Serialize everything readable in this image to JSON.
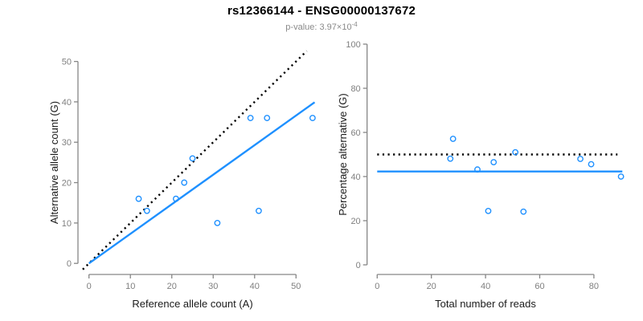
{
  "header": {
    "title": "rs12366144 - ENSG00000137672",
    "subtitle_text": "p-value: 3.97×10",
    "subtitle_exponent": "-4"
  },
  "colors": {
    "point_blue": "#1E90FF",
    "fit_blue": "#1E90FF",
    "dotted_black": "#000000",
    "axis_gray": "#868686",
    "tick_label_gray": "#7f7f7f"
  },
  "chart_data": [
    {
      "type": "scatter",
      "xlabel": "Reference allele count (A)",
      "ylabel": "Alternative allele count (G)",
      "xticks": [
        0,
        10,
        20,
        30,
        40,
        50
      ],
      "yticks": [
        0,
        10,
        20,
        30,
        40,
        50
      ],
      "xlim": [
        0,
        54
      ],
      "ylim": [
        0,
        52
      ],
      "grid": false,
      "legend": false,
      "points": [
        [
          12,
          16
        ],
        [
          14,
          13
        ],
        [
          21,
          16
        ],
        [
          23,
          20
        ],
        [
          25,
          26
        ],
        [
          31,
          10
        ],
        [
          39,
          36
        ],
        [
          41,
          13
        ],
        [
          43,
          36
        ],
        [
          54,
          36
        ]
      ],
      "lines": [
        {
          "name": "identity-dotted-line",
          "style": "dotted",
          "color": "#000000",
          "x1": -1.5,
          "y1": -1.5,
          "x2": 52.6,
          "y2": 52.6
        },
        {
          "name": "fit-line",
          "style": "solid",
          "color": "#1E90FF",
          "x1": 0,
          "y1": 0,
          "x2": 54.5,
          "y2": 39.9
        }
      ]
    },
    {
      "type": "scatter",
      "xlabel": "Total number of reads",
      "ylabel": "Percentage alternative (G)",
      "xticks": [
        0,
        20,
        40,
        60,
        80
      ],
      "yticks": [
        0,
        20,
        40,
        60,
        80,
        100
      ],
      "xlim": [
        0,
        90
      ],
      "ylim": [
        0,
        100
      ],
      "grid": false,
      "legend": false,
      "points": [
        [
          28,
          57.1
        ],
        [
          27,
          48.1
        ],
        [
          37,
          43.2
        ],
        [
          43,
          46.5
        ],
        [
          51,
          51.0
        ],
        [
          41,
          24.4
        ],
        [
          54,
          24.1
        ],
        [
          75,
          48.0
        ],
        [
          79,
          45.6
        ],
        [
          90,
          40.0
        ]
      ],
      "lines": [
        {
          "name": "expected-50pct-dotted-line",
          "style": "dotted",
          "color": "#000000",
          "x1": 0,
          "y1": 50,
          "x2": 88.7,
          "y2": 50
        },
        {
          "name": "mean-percentage-line",
          "style": "solid",
          "color": "#1E90FF",
          "x1": 0,
          "y1": 42.3,
          "x2": 90.5,
          "y2": 42.3
        }
      ]
    }
  ]
}
